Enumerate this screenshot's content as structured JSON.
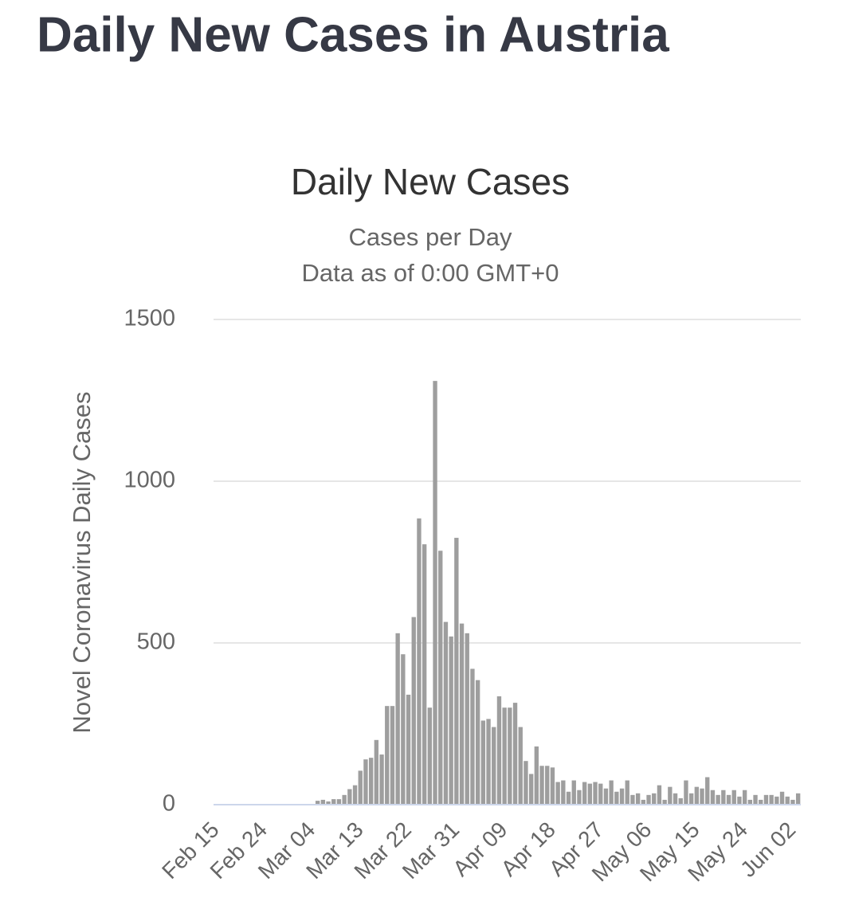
{
  "page_title": "Daily New Cases in Austria",
  "chart_data": {
    "type": "bar",
    "title": "Daily New Cases",
    "subtitle": [
      "Cases per Day",
      "Data as of 0:00 GMT+0"
    ],
    "y_label": "Novel Coronavirus Daily Cases",
    "color": "#9e9e9e",
    "grid": true,
    "ylim": [
      0,
      1500
    ],
    "yticks": [
      0,
      500,
      1000,
      1500
    ],
    "categories": [
      "Feb 15",
      null,
      null,
      null,
      null,
      null,
      null,
      null,
      null,
      "Feb 24",
      null,
      null,
      null,
      null,
      null,
      null,
      null,
      null,
      "Mar 04",
      null,
      null,
      null,
      null,
      null,
      null,
      null,
      null,
      "Mar 13",
      null,
      null,
      null,
      null,
      null,
      null,
      null,
      null,
      "Mar 22",
      null,
      null,
      null,
      null,
      null,
      null,
      null,
      null,
      "Mar 31",
      null,
      null,
      null,
      null,
      null,
      null,
      null,
      null,
      "Apr 09",
      null,
      null,
      null,
      null,
      null,
      null,
      null,
      null,
      "Apr 18",
      null,
      null,
      null,
      null,
      null,
      null,
      null,
      null,
      "Apr 27",
      null,
      null,
      null,
      null,
      null,
      null,
      null,
      null,
      "May 06",
      null,
      null,
      null,
      null,
      null,
      null,
      null,
      null,
      "May 15",
      null,
      null,
      null,
      null,
      null,
      null,
      null,
      null,
      "May 24",
      null,
      null,
      null,
      null,
      null,
      null,
      null,
      null,
      "Jun 02",
      null
    ],
    "values": [
      0,
      0,
      0,
      0,
      0,
      0,
      0,
      0,
      0,
      0,
      0,
      0,
      0,
      0,
      0,
      0,
      0,
      0,
      0,
      12,
      15,
      10,
      17,
      17,
      30,
      48,
      60,
      105,
      140,
      145,
      200,
      155,
      305,
      305,
      530,
      465,
      340,
      580,
      885,
      805,
      300,
      1310,
      785,
      565,
      520,
      825,
      560,
      530,
      420,
      385,
      260,
      265,
      240,
      335,
      300,
      300,
      315,
      240,
      135,
      95,
      180,
      120,
      120,
      115,
      70,
      75,
      40,
      75,
      45,
      70,
      65,
      70,
      65,
      50,
      75,
      40,
      50,
      75,
      30,
      35,
      15,
      30,
      35,
      60,
      15,
      55,
      35,
      20,
      75,
      35,
      55,
      50,
      85,
      45,
      30,
      45,
      30,
      45,
      25,
      45,
      15,
      30,
      15,
      30,
      30,
      25,
      40,
      25,
      15,
      35
    ]
  }
}
